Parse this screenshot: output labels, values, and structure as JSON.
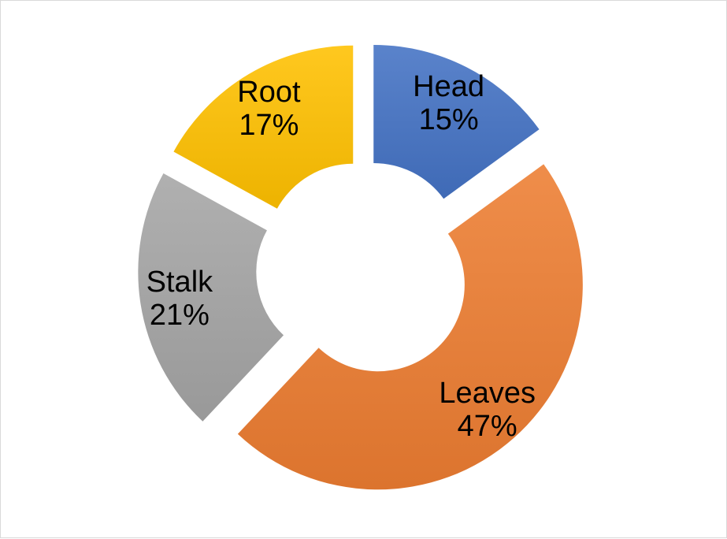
{
  "chart_data": {
    "type": "pie",
    "variant": "donut",
    "exploded": true,
    "title": "",
    "legend": "none",
    "categories": [
      "Head",
      "Leaves",
      "Stalk",
      "Root"
    ],
    "values": [
      15,
      47,
      21,
      17
    ],
    "unit": "%",
    "colors": [
      "#4472c4",
      "#ed7d31",
      "#a5a5a5",
      "#ffc000"
    ],
    "data_labels": [
      {
        "category": "Head",
        "percent": "15%"
      },
      {
        "category": "Leaves",
        "percent": "47%"
      },
      {
        "category": "Stalk",
        "percent": "21%"
      },
      {
        "category": "Root",
        "percent": "17%"
      }
    ]
  }
}
